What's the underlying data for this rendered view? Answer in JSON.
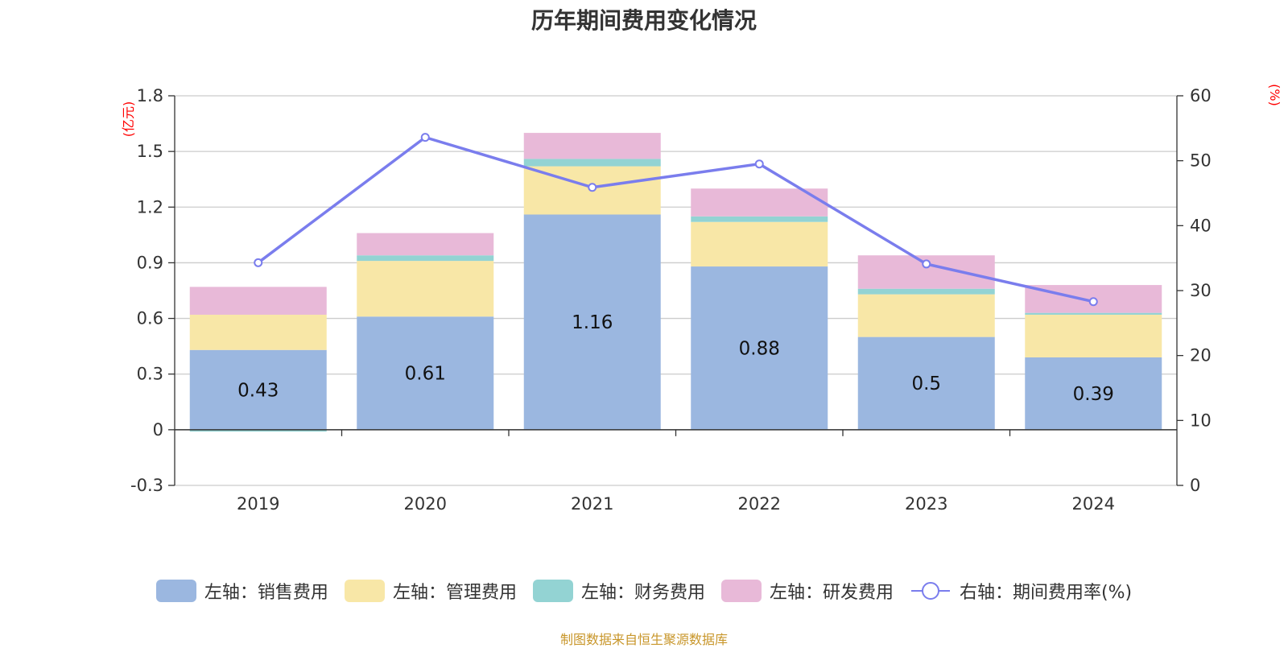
{
  "title": "历年期间费用变化情况",
  "source": "制图数据来自恒生聚源数据库",
  "chart_data": {
    "type": "bar",
    "stacked": true,
    "categories": [
      "2019",
      "2020",
      "2021",
      "2022",
      "2023",
      "2024"
    ],
    "y_left": {
      "unit": "(亿元)",
      "ylim": [
        -0.3,
        1.8
      ],
      "ticks": [
        "-0.3",
        "0",
        "0.3",
        "0.6",
        "0.9",
        "1.2",
        "1.5",
        "1.8"
      ]
    },
    "y_right": {
      "unit": "(%)",
      "ylim": [
        0,
        60
      ],
      "ticks": [
        "0",
        "10",
        "20",
        "30",
        "40",
        "50",
        "60"
      ]
    },
    "series": [
      {
        "name": "左轴：销售费用",
        "axis": "left",
        "color": "#9bb7e0",
        "values": [
          0.43,
          0.61,
          1.16,
          0.88,
          0.5,
          0.39
        ],
        "labels": [
          "0.43",
          "0.61",
          "1.16",
          "0.88",
          "0.5",
          "0.39"
        ]
      },
      {
        "name": "左轴：管理费用",
        "axis": "left",
        "color": "#f8e7a7",
        "values": [
          0.19,
          0.3,
          0.26,
          0.24,
          0.23,
          0.23
        ]
      },
      {
        "name": "左轴：财务费用",
        "axis": "left",
        "color": "#93d3d3",
        "values": [
          -0.01,
          0.03,
          0.04,
          0.03,
          0.03,
          0.01
        ]
      },
      {
        "name": "左轴：研发费用",
        "axis": "left",
        "color": "#e8b9d8",
        "values": [
          0.15,
          0.12,
          0.14,
          0.15,
          0.18,
          0.15
        ]
      },
      {
        "name": "右轴：期间费用率(%)",
        "axis": "right",
        "type": "line",
        "color": "#7a7ded",
        "values": [
          34.3,
          53.6,
          45.9,
          49.5,
          34.1,
          28.3
        ]
      }
    ],
    "grid": true,
    "legend_position": "bottom"
  }
}
